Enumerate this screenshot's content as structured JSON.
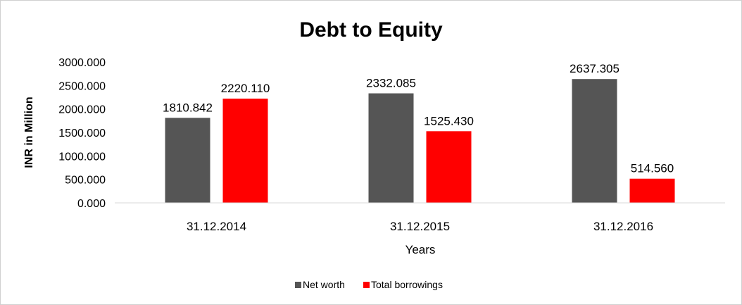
{
  "colors": {
    "networth": "#555555",
    "borrowings": "#ff0000"
  },
  "chart_data": {
    "type": "bar",
    "title": "Debt to Equity",
    "xlabel": "Years",
    "ylabel": "INR in Million",
    "categories": [
      "31.12.2014",
      "31.12.2015",
      "31.12.2016"
    ],
    "series": [
      {
        "name": "Net worth",
        "values": [
          1810.842,
          2332.085,
          2637.305
        ]
      },
      {
        "name": "Total borrowings",
        "values": [
          2220.11,
          1525.43,
          514.56
        ]
      }
    ],
    "ylim": [
      0,
      3000
    ],
    "yticks": [
      "0.000",
      "500.000",
      "1000.000",
      "1500.000",
      "2000.000",
      "2500.000",
      "3000.000"
    ],
    "data_labels": [
      [
        "1810.842",
        "2332.085",
        "2637.305"
      ],
      [
        "2220.110",
        "1525.430",
        "514.560"
      ]
    ],
    "grid": false,
    "legend": "bottom"
  }
}
